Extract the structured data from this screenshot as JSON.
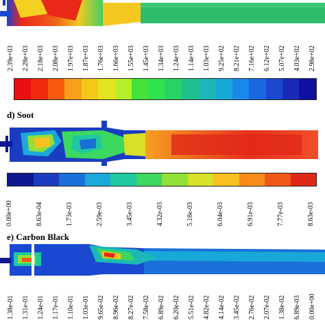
{
  "panel_c": {
    "scale_labels": [
      "2.39e+03",
      "2.28e+03",
      "2.18e+03",
      "2.08e+03",
      "1.97e+03",
      "1.87e+03",
      "1.76e+03",
      "1.66e+03",
      "1.55e+03",
      "1.45e+03",
      "1.34e+03",
      "1.24e+03",
      "1.14e+03",
      "1.03e+03",
      "9.25e+02",
      "8.21e+02",
      "7.16e+02",
      "6.12e+02",
      "5.07e+02",
      "4.03e+02",
      "2.98e+02"
    ],
    "bar_colors": [
      "#e81010",
      "#f02a10",
      "#f85a10",
      "#f9a01a",
      "#f4c81a",
      "#e4e41e",
      "#b4f02a",
      "#44e23a",
      "#2ee250",
      "#28d266",
      "#20c08c",
      "#1cb8b8",
      "#18a8d8",
      "#1a88e8",
      "#1a68e0",
      "#1a48d0",
      "#1a2ab8",
      "#1010a0"
    ]
  },
  "panel_d": {
    "title": "d) Soot",
    "scale_labels": [
      "0.00e+00",
      "8.63e-04",
      "1.73e-03",
      "2.59e-03",
      "3.45e-03",
      "4.32e-03",
      "5.18e-03",
      "6.04e-03",
      "6.91e-03",
      "7.77e-03",
      "8.63e-03"
    ],
    "bar_colors": [
      "#101890",
      "#1a3cc0",
      "#1a70d8",
      "#1aa8d8",
      "#20c8a0",
      "#3cd860",
      "#90e038",
      "#d8e028",
      "#f8c020",
      "#f88c18",
      "#f05818",
      "#e02818"
    ]
  },
  "panel_e": {
    "title": "e) Carbon Black",
    "scale_labels": [
      "1.38e-01",
      "1.31e-01",
      "1.24e-01",
      "1.17e-01",
      "1.10e-01",
      "1.03e-01",
      "9.65e-02",
      "8.96e-02",
      "8.27e-02",
      "7.58e-02",
      "6.89e-02",
      "6.20e-02",
      "5.51e-02",
      "4.82e-02",
      "4.14e-02",
      "3.45e-02",
      "2.76e-02",
      "2.07e-02",
      "1.38e-02",
      "6.89e-03",
      "0.00e+00"
    ]
  }
}
